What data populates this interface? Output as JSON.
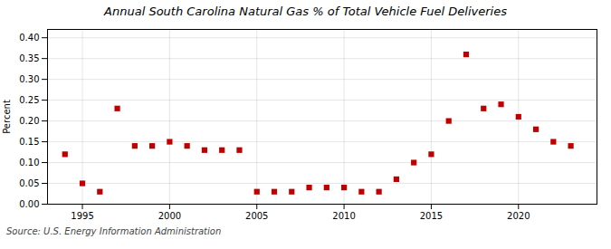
{
  "chart_data": {
    "type": "scatter",
    "title": "Annual South Carolina Natural Gas % of Total Vehicle Fuel Deliveries",
    "ylabel": "Percent",
    "source": "Source: U.S. Energy Information Administration",
    "x": [
      1994,
      1995,
      1996,
      1997,
      1998,
      1999,
      2000,
      2001,
      2002,
      2003,
      2004,
      2005,
      2006,
      2007,
      2008,
      2009,
      2010,
      2011,
      2012,
      2013,
      2014,
      2015,
      2016,
      2017,
      2018,
      2019,
      2020,
      2021,
      2022,
      2023
    ],
    "values": [
      0.12,
      0.05,
      0.03,
      0.23,
      0.14,
      0.14,
      0.15,
      0.14,
      0.13,
      0.13,
      0.13,
      0.03,
      0.03,
      0.03,
      0.04,
      0.04,
      0.04,
      0.03,
      0.03,
      0.06,
      0.1,
      0.12,
      0.2,
      0.36,
      0.23,
      0.24,
      0.21,
      0.18,
      0.15,
      0.14
    ],
    "color": "#c00000",
    "marker": "square",
    "xlim": [
      1993.0,
      2024.5
    ],
    "xticks": [
      1995,
      2000,
      2005,
      2010,
      2015,
      2020
    ],
    "ylim": [
      0.0,
      0.42
    ],
    "yticks": [
      {
        "value": 0.0,
        "label": "0.00"
      },
      {
        "value": 0.05,
        "label": "0.05"
      },
      {
        "value": 0.1,
        "label": "0.10"
      },
      {
        "value": 0.15,
        "label": "0.15"
      },
      {
        "value": 0.2,
        "label": "0.20"
      },
      {
        "value": 0.25,
        "label": "0.25"
      },
      {
        "value": 0.3,
        "label": "0.30"
      },
      {
        "value": 0.35,
        "label": "0.35"
      },
      {
        "value": 0.4,
        "label": "0.40"
      }
    ],
    "grid": true
  }
}
